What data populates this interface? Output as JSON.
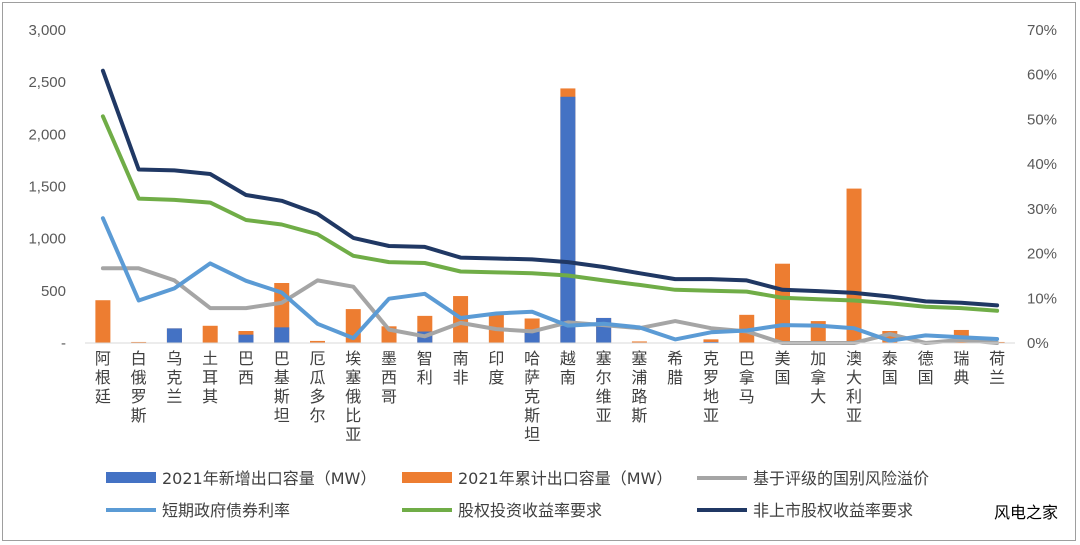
{
  "chart_data": {
    "type": "bar",
    "categories": [
      "阿根廷",
      "白俄罗斯",
      "乌克兰",
      "土耳其",
      "巴西",
      "巴基斯坦",
      "厄瓜多尔",
      "埃塞俄比亚",
      "墨西哥",
      "智利",
      "南非",
      "印度",
      "哈萨克斯坦",
      "越南",
      "塞尔维亚",
      "塞浦路斯",
      "希腊",
      "克罗地亚",
      "巴拿马",
      "美国",
      "加拿大",
      "澳大利亚",
      "泰国",
      "德国",
      "瑞典",
      "荷兰"
    ],
    "y_left": {
      "min": 0,
      "max": 3000,
      "step": 500,
      "ticks": [
        "-",
        "500",
        "1,000",
        "1,500",
        "2,000",
        "2,500",
        "3,000"
      ]
    },
    "y_right": {
      "min": 0,
      "max": 70,
      "step": 10,
      "ticks": [
        "0%",
        "10%",
        "20%",
        "30%",
        "40%",
        "50%",
        "60%",
        "70%"
      ]
    },
    "series": [
      {
        "name": "2021年新增出口容量（MW）",
        "type": "bar",
        "axis": "left",
        "color": "#4472C4",
        "values": [
          0,
          0,
          140,
          0,
          80,
          150,
          0,
          0,
          0,
          110,
          0,
          0,
          110,
          2360,
          240,
          0,
          0,
          10,
          0,
          0,
          0,
          0,
          0,
          0,
          0,
          0
        ]
      },
      {
        "name": "2021年累计出口容量（MW）",
        "type": "bar",
        "axis": "left",
        "color": "#ED7D31",
        "values": [
          410,
          10,
          140,
          165,
          115,
          575,
          20,
          325,
          160,
          260,
          450,
          290,
          235,
          2440,
          240,
          15,
          0,
          35,
          270,
          760,
          210,
          1480,
          115,
          5,
          125,
          10
        ]
      },
      {
        "name": "基于评级的国别风险溢价",
        "type": "line",
        "axis": "right",
        "color": "#A5A5A5",
        "values": [
          16.7,
          16.7,
          14.0,
          7.8,
          7.8,
          9.0,
          14.0,
          12.6,
          3.0,
          1.5,
          4.5,
          3.1,
          2.6,
          4.6,
          4.0,
          3.3,
          4.9,
          3.3,
          2.6,
          0,
          0,
          0,
          2.0,
          0,
          0.7,
          0
        ]
      },
      {
        "name": "短期政府债券利率",
        "type": "line",
        "axis": "right",
        "color": "#5B9BD5",
        "values": [
          27.9,
          9.5,
          12.2,
          17.8,
          13.9,
          11.3,
          4.3,
          1.1,
          9.9,
          11.0,
          5.6,
          6.6,
          7.0,
          3.9,
          4.3,
          3.5,
          0.8,
          2.4,
          2.8,
          4.0,
          3.9,
          3.3,
          0.5,
          1.7,
          1.3,
          0.9
        ]
      },
      {
        "name": "股权投资收益率要求",
        "type": "line",
        "axis": "right",
        "color": "#70AD47",
        "values": [
          50.7,
          32.3,
          32.0,
          31.4,
          27.5,
          26.5,
          24.3,
          19.5,
          18.1,
          17.9,
          16.0,
          15.8,
          15.6,
          15.1,
          14.0,
          13.0,
          11.9,
          11.7,
          11.5,
          10.1,
          9.8,
          9.5,
          8.9,
          8.1,
          7.8,
          7.2
        ]
      },
      {
        "name": "非上市股权收益率要求",
        "type": "line",
        "axis": "right",
        "color": "#203864",
        "values": [
          60.9,
          38.8,
          38.6,
          37.8,
          33.1,
          31.8,
          28.9,
          23.5,
          21.7,
          21.5,
          19.1,
          18.9,
          18.7,
          18.1,
          17.0,
          15.6,
          14.3,
          14.3,
          14.0,
          11.9,
          11.6,
          11.2,
          10.4,
          9.3,
          9.0,
          8.4
        ]
      }
    ],
    "legend_position": "bottom",
    "grid": false
  },
  "watermark": "风电之家"
}
